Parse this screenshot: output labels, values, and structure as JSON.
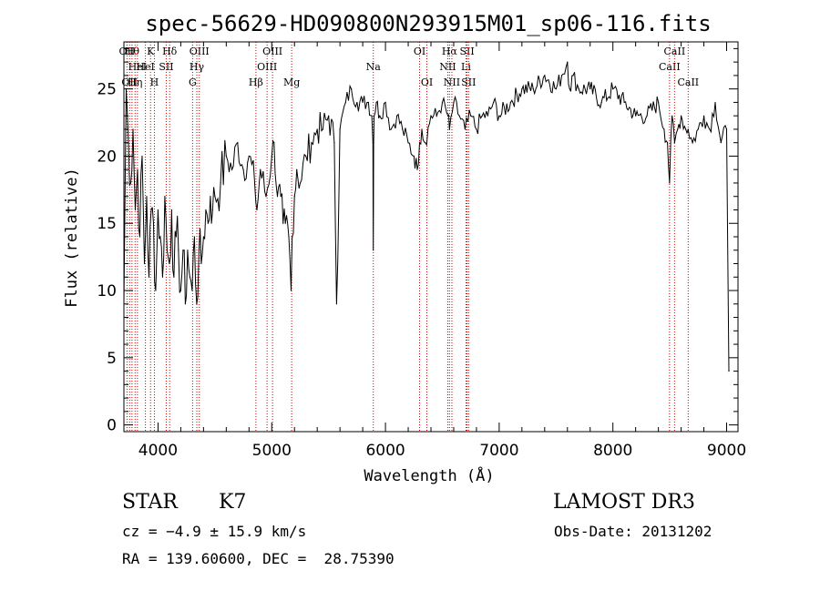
{
  "chart_data": {
    "type": "line",
    "title": "spec-56629-HD090800N293915M01_sp06-116.fits",
    "xlabel": "Wavelength (Å)",
    "ylabel": "Flux (relative)",
    "xlim": [
      3700,
      9100
    ],
    "ylim": [
      -0.5,
      28.5
    ],
    "x_ticks": [
      4000,
      5000,
      6000,
      7000,
      8000,
      9000
    ],
    "y_ticks": [
      0,
      5,
      10,
      15,
      20,
      25
    ],
    "grid": false,
    "line_color": "#000000",
    "marker_color": "#cc0000",
    "series": [
      {
        "x": [
          3700,
          3720,
          3740,
          3760,
          3780,
          3800,
          3820,
          3840,
          3860,
          3880,
          3900,
          3920,
          3940,
          3960,
          3980,
          4000,
          4020,
          4040,
          4060,
          4080,
          4100,
          4120,
          4140,
          4160,
          4180,
          4200,
          4220,
          4240,
          4260,
          4280,
          4300,
          4320,
          4340,
          4360,
          4380,
          4400,
          4420,
          4440,
          4460,
          4480,
          4500,
          4550,
          4600,
          4650,
          4700,
          4750,
          4800,
          4850,
          4870,
          4900,
          4950,
          5000,
          5020,
          5050,
          5080,
          5100,
          5120,
          5150,
          5170,
          5180,
          5200,
          5220,
          5250,
          5300,
          5350,
          5400,
          5450,
          5500,
          5550,
          5570,
          5600,
          5650,
          5700,
          5750,
          5800,
          5850,
          5880,
          5890,
          5893,
          5896,
          5900,
          5920,
          5950,
          6000,
          6050,
          6100,
          6150,
          6200,
          6250,
          6280,
          6300,
          6320,
          6350,
          6400,
          6450,
          6500,
          6550,
          6563,
          6600,
          6650,
          6700,
          6750,
          6800,
          6850,
          6900,
          6950,
          7000,
          7100,
          7200,
          7300,
          7400,
          7500,
          7550,
          7600,
          7620,
          7650,
          7700,
          7800,
          7900,
          8000,
          8100,
          8200,
          8300,
          8400,
          8450,
          8480,
          8498,
          8520,
          8542,
          8570,
          8600,
          8640,
          8662,
          8700,
          8750,
          8800,
          8850,
          8900,
          8950,
          9000,
          9020
        ],
        "y": [
          9,
          25,
          21,
          18,
          22,
          16,
          19,
          14,
          20,
          12,
          17,
          11,
          16,
          15,
          10,
          16,
          14,
          11,
          17,
          13,
          12,
          16,
          11,
          14,
          13,
          10,
          13,
          9,
          13,
          11,
          10,
          14,
          9,
          13,
          12,
          14,
          16,
          15,
          17,
          16,
          17,
          18,
          20,
          19,
          21,
          19,
          20,
          18,
          16,
          19,
          17,
          20,
          21,
          17,
          17,
          15,
          15,
          14,
          10,
          14,
          17,
          19,
          18,
          20,
          21,
          22,
          22,
          23,
          21,
          9,
          22,
          24,
          25,
          24,
          24,
          24,
          23,
          21,
          13,
          21,
          23,
          24,
          23,
          24,
          22,
          23,
          22,
          21,
          20,
          19,
          21,
          22,
          21,
          23,
          23,
          24,
          23,
          22,
          24,
          23,
          22,
          23,
          22,
          23,
          23,
          24,
          23,
          24,
          25,
          25,
          26,
          25,
          26,
          27,
          25,
          26,
          25,
          25,
          24,
          25,
          24,
          23,
          23,
          24,
          22,
          21,
          18,
          23,
          21,
          22,
          23,
          22,
          22,
          21,
          22,
          23,
          22,
          24,
          21,
          22,
          4
        ]
      }
    ],
    "line_markers": [
      {
        "x": 3727,
        "label": "OII",
        "row": 0
      },
      {
        "x": 3750,
        "label": "OII",
        "row": 2
      },
      {
        "x": 3771,
        "label": "Hθ",
        "row": 0
      },
      {
        "x": 3798,
        "label": "Hη",
        "row": 2
      },
      {
        "x": 3819,
        "label": "HeI",
        "row": 1
      },
      {
        "x": 3889,
        "label": "HeI",
        "row": 1
      },
      {
        "x": 3934,
        "label": "K",
        "row": 0
      },
      {
        "x": 3968,
        "label": "H",
        "row": 2
      },
      {
        "x": 4072,
        "label": "SII",
        "row": 1
      },
      {
        "x": 4102,
        "label": "Hδ",
        "row": 0
      },
      {
        "x": 4304,
        "label": "G",
        "row": 2
      },
      {
        "x": 4341,
        "label": "Hγ",
        "row": 1
      },
      {
        "x": 4363,
        "label": "OIII",
        "row": 0
      },
      {
        "x": 4861,
        "label": "Hβ",
        "row": 2
      },
      {
        "x": 4959,
        "label": "OIII",
        "row": 1
      },
      {
        "x": 5007,
        "label": "OIII",
        "row": 0
      },
      {
        "x": 5175,
        "label": "Mg",
        "row": 2
      },
      {
        "x": 5893,
        "label": "Na",
        "row": 1
      },
      {
        "x": 6300,
        "label": "OI",
        "row": 0
      },
      {
        "x": 6364,
        "label": "OI",
        "row": 2
      },
      {
        "x": 6548,
        "label": "NII",
        "row": 1
      },
      {
        "x": 6563,
        "label": "Hα",
        "row": 0
      },
      {
        "x": 6584,
        "label": "NII",
        "row": 2
      },
      {
        "x": 6708,
        "label": "Li",
        "row": 1
      },
      {
        "x": 6717,
        "label": "SII",
        "row": 0
      },
      {
        "x": 6731,
        "label": "SII",
        "row": 2
      },
      {
        "x": 8498,
        "label": "CaII",
        "row": 1
      },
      {
        "x": 8542,
        "label": "CaII",
        "row": 0
      },
      {
        "x": 8662,
        "label": "CaII",
        "row": 2
      }
    ]
  },
  "footer": {
    "object_class": "STAR",
    "subclass": "K7",
    "survey": "LAMOST DR3",
    "velocity": "cz = −4.9 ± 15.9 km/s",
    "obs_date": "Obs-Date: 20131202",
    "coordinates": "RA = 139.60600, DEC =  28.75390"
  }
}
